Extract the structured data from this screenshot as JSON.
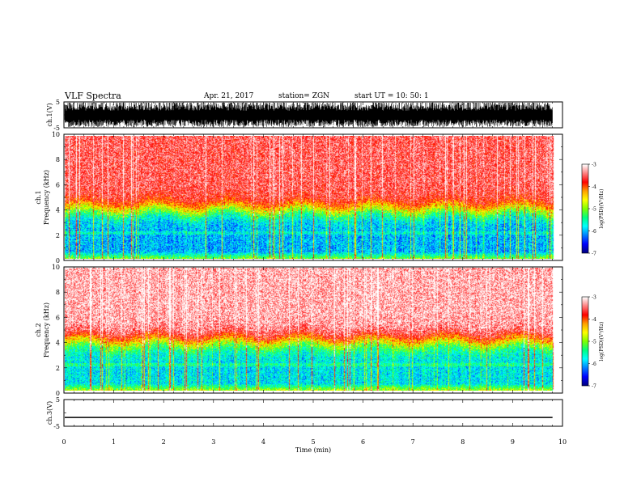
{
  "header": {
    "title": "VLF Spectra",
    "date": "Apr. 21, 2017",
    "station": "station= ZGN",
    "start_ut": "start  UT  =    10: 50: 1"
  },
  "chart_data": {
    "type": "heatmap",
    "panels": [
      {
        "id": "ch1_waveform",
        "ylabel": "ch.1(V)",
        "ylim": [
          -5,
          5
        ],
        "yticks": [
          "5",
          "-5"
        ],
        "signal": "dense noisy waveform saturating between -5 and 5"
      },
      {
        "id": "ch1_spectrogram",
        "ylabel": "ch.1\nFrequency  (kHz)",
        "ylabel_lines": [
          "ch.1",
          "Frequency  (kHz)"
        ],
        "ylim": [
          0,
          10
        ],
        "yticks": [
          "0",
          "2",
          "4",
          "6",
          "8",
          "10"
        ],
        "colorbar": {
          "label": "log(PSD)(V²/Hz)",
          "range": [
            -7,
            -3
          ],
          "ticks": [
            "-3",
            "-4",
            "-5",
            "-6",
            "-7"
          ]
        },
        "description_levels": {
          "below_4kHz": -6.2,
          "above_4kHz": -3.6
        }
      },
      {
        "id": "ch2_spectrogram",
        "ylabel": "ch.2\nFrequency  (kHz)",
        "ylabel_lines": [
          "ch.2",
          "Frequency  (kHz)"
        ],
        "ylim": [
          0,
          10
        ],
        "yticks": [
          "0",
          "2",
          "4",
          "6",
          "8",
          "10"
        ],
        "colorbar": {
          "label": "log(PSD)(V²/Hz)",
          "range": [
            -7,
            -3
          ],
          "ticks": [
            "-3",
            "-4",
            "-5",
            "-6",
            "-7"
          ]
        },
        "description_levels": {
          "below_4kHz": -6.0,
          "above_4kHz": -3.3
        }
      },
      {
        "id": "ch3_waveform",
        "ylabel": "ch.3(V)",
        "ylim": [
          -5,
          5
        ],
        "yticks": [
          "5",
          "-5"
        ],
        "signal": "flat line near -1.7"
      }
    ],
    "xaxis": {
      "label": "Time  (min)",
      "range": [
        0,
        10
      ],
      "ticks": [
        "0",
        "1",
        "2",
        "3",
        "4",
        "5",
        "6",
        "7",
        "8",
        "9",
        "10"
      ]
    },
    "data_end_min": 9.8,
    "colormap": [
      "#000080",
      "#0000ff",
      "#0080ff",
      "#00ffff",
      "#00ff80",
      "#80ff00",
      "#ffff00",
      "#ffa000",
      "#ff0000",
      "#ff8080",
      "#ffffff"
    ]
  }
}
